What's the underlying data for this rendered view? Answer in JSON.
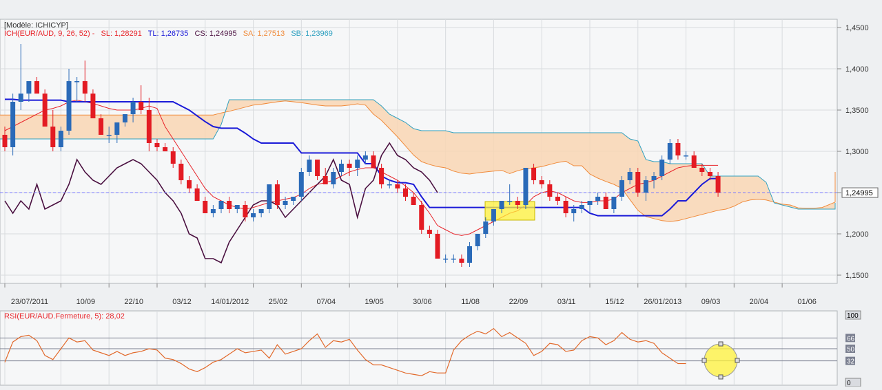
{
  "chart_data": [
    {
      "type": "candlestick",
      "title": "[Modèle: ICHICYP]",
      "indicator_prefix": "ICH(EUR/AUD, 9, 26, 52) -",
      "legend": [
        {
          "label": "SL: 1,28291",
          "color": "#e8242a"
        },
        {
          "label": "TL: 1,26735",
          "color": "#1a1ad8"
        },
        {
          "label": "CS: 1,24995",
          "color": "#4a1040"
        },
        {
          "label": "SA: 1,27513",
          "color": "#f08a3a"
        },
        {
          "label": "SB: 1,23969",
          "color": "#2fa0c0"
        }
      ],
      "ylim": [
        1.14,
        1.46
      ],
      "yticks": [
        {
          "value": 1.45,
          "label": "1,4500"
        },
        {
          "value": 1.4,
          "label": "1,4000"
        },
        {
          "value": 1.35,
          "label": "1,3500"
        },
        {
          "value": 1.3,
          "label": "1,3000"
        },
        {
          "value": 1.25,
          "label": "1,2500"
        },
        {
          "value": 1.2,
          "label": "1,2000"
        },
        {
          "value": 1.15,
          "label": "1,1500"
        }
      ],
      "last_price": {
        "value": 1.24995,
        "label": "1,24995"
      },
      "x_count": 104,
      "xticks": [
        {
          "i": 0,
          "label": "23/07/2011"
        },
        {
          "i": 7,
          "label": "10/09"
        },
        {
          "i": 13,
          "label": "22/10"
        },
        {
          "i": 19,
          "label": "03/12"
        },
        {
          "i": 25,
          "label": "14/01/2012"
        },
        {
          "i": 31,
          "label": "25/02"
        },
        {
          "i": 37,
          "label": "07/04"
        },
        {
          "i": 43,
          "label": "19/05"
        },
        {
          "i": 49,
          "label": "30/06"
        },
        {
          "i": 55,
          "label": "11/08"
        },
        {
          "i": 61,
          "label": "22/09"
        },
        {
          "i": 67,
          "label": "03/11"
        },
        {
          "i": 73,
          "label": "15/12"
        },
        {
          "i": 79,
          "label": "26/01/2013"
        },
        {
          "i": 85,
          "label": "09/03"
        },
        {
          "i": 91,
          "label": "20/04"
        },
        {
          "i": 97,
          "label": "01/06"
        }
      ],
      "colors": {
        "up": "#2a6ab8",
        "down": "#e31b23",
        "cloud": "#f9d6b4"
      },
      "candles": [
        [
          1.32,
          1.33,
          1.3,
          1.305
        ],
        [
          1.305,
          1.37,
          1.295,
          1.36
        ],
        [
          1.36,
          1.43,
          1.35,
          1.37
        ],
        [
          1.37,
          1.385,
          1.36,
          1.385
        ],
        [
          1.385,
          1.39,
          1.37,
          1.37
        ],
        [
          1.37,
          1.375,
          1.33,
          1.33
        ],
        [
          1.33,
          1.35,
          1.3,
          1.305
        ],
        [
          1.305,
          1.33,
          1.3,
          1.325
        ],
        [
          1.325,
          1.4,
          1.32,
          1.385
        ],
        [
          1.385,
          1.39,
          1.36,
          1.385
        ],
        [
          1.385,
          1.41,
          1.36,
          1.37
        ],
        [
          1.37,
          1.375,
          1.34,
          1.34
        ],
        [
          1.34,
          1.345,
          1.32,
          1.32
        ],
        [
          1.32,
          1.33,
          1.31,
          1.32
        ],
        [
          1.32,
          1.335,
          1.31,
          1.335
        ],
        [
          1.335,
          1.345,
          1.33,
          1.345
        ],
        [
          1.345,
          1.365,
          1.335,
          1.36
        ],
        [
          1.36,
          1.38,
          1.345,
          1.35
        ],
        [
          1.35,
          1.365,
          1.3,
          1.31
        ],
        [
          1.31,
          1.315,
          1.3,
          1.305
        ],
        [
          1.305,
          1.31,
          1.3,
          1.3
        ],
        [
          1.3,
          1.305,
          1.28,
          1.285
        ],
        [
          1.285,
          1.29,
          1.26,
          1.265
        ],
        [
          1.265,
          1.27,
          1.25,
          1.255
        ],
        [
          1.255,
          1.26,
          1.24,
          1.24
        ],
        [
          1.24,
          1.245,
          1.225,
          1.225
        ],
        [
          1.225,
          1.235,
          1.22,
          1.23
        ],
        [
          1.23,
          1.24,
          1.225,
          1.24
        ],
        [
          1.24,
          1.245,
          1.225,
          1.23
        ],
        [
          1.23,
          1.235,
          1.225,
          1.235
        ],
        [
          1.235,
          1.24,
          1.215,
          1.22
        ],
        [
          1.22,
          1.23,
          1.215,
          1.225
        ],
        [
          1.225,
          1.23,
          1.22,
          1.23
        ],
        [
          1.23,
          1.26,
          1.225,
          1.26
        ],
        [
          1.26,
          1.265,
          1.23,
          1.235
        ],
        [
          1.235,
          1.245,
          1.23,
          1.24
        ],
        [
          1.24,
          1.245,
          1.235,
          1.245
        ],
        [
          1.245,
          1.28,
          1.24,
          1.275
        ],
        [
          1.275,
          1.295,
          1.27,
          1.29
        ],
        [
          1.29,
          1.29,
          1.265,
          1.27
        ],
        [
          1.27,
          1.28,
          1.26,
          1.26
        ],
        [
          1.26,
          1.28,
          1.255,
          1.275
        ],
        [
          1.275,
          1.29,
          1.27,
          1.285
        ],
        [
          1.285,
          1.29,
          1.27,
          1.28
        ],
        [
          1.28,
          1.295,
          1.27,
          1.29
        ],
        [
          1.29,
          1.3,
          1.285,
          1.295
        ],
        [
          1.295,
          1.3,
          1.28,
          1.28
        ],
        [
          1.28,
          1.285,
          1.255,
          1.26
        ],
        [
          1.26,
          1.265,
          1.255,
          1.26
        ],
        [
          1.26,
          1.265,
          1.25,
          1.255
        ],
        [
          1.255,
          1.26,
          1.24,
          1.245
        ],
        [
          1.245,
          1.25,
          1.235,
          1.235
        ],
        [
          1.235,
          1.24,
          1.2,
          1.205
        ],
        [
          1.205,
          1.21,
          1.195,
          1.2
        ],
        [
          1.2,
          1.205,
          1.17,
          1.17
        ],
        [
          1.17,
          1.175,
          1.165,
          1.17
        ],
        [
          1.17,
          1.175,
          1.165,
          1.17
        ],
        [
          1.17,
          1.175,
          1.16,
          1.165
        ],
        [
          1.165,
          1.19,
          1.16,
          1.185
        ],
        [
          1.185,
          1.2,
          1.18,
          1.2
        ],
        [
          1.2,
          1.22,
          1.195,
          1.215
        ],
        [
          1.215,
          1.23,
          1.21,
          1.23
        ],
        [
          1.23,
          1.24,
          1.225,
          1.24
        ],
        [
          1.24,
          1.26,
          1.235,
          1.24
        ],
        [
          1.24,
          1.245,
          1.23,
          1.235
        ],
        [
          1.235,
          1.28,
          1.23,
          1.28
        ],
        [
          1.28,
          1.285,
          1.26,
          1.265
        ],
        [
          1.265,
          1.27,
          1.255,
          1.26
        ],
        [
          1.26,
          1.265,
          1.24,
          1.245
        ],
        [
          1.245,
          1.25,
          1.235,
          1.24
        ],
        [
          1.24,
          1.245,
          1.22,
          1.225
        ],
        [
          1.225,
          1.235,
          1.215,
          1.23
        ],
        [
          1.23,
          1.24,
          1.225,
          1.235
        ],
        [
          1.235,
          1.24,
          1.225,
          1.24
        ],
        [
          1.24,
          1.25,
          1.235,
          1.245
        ],
        [
          1.245,
          1.25,
          1.23,
          1.23
        ],
        [
          1.23,
          1.245,
          1.225,
          1.245
        ],
        [
          1.245,
          1.27,
          1.24,
          1.265
        ],
        [
          1.265,
          1.28,
          1.26,
          1.275
        ],
        [
          1.275,
          1.28,
          1.245,
          1.25
        ],
        [
          1.25,
          1.27,
          1.24,
          1.265
        ],
        [
          1.265,
          1.275,
          1.255,
          1.27
        ],
        [
          1.27,
          1.295,
          1.265,
          1.29
        ],
        [
          1.29,
          1.315,
          1.285,
          1.31
        ],
        [
          1.31,
          1.315,
          1.29,
          1.295
        ],
        [
          1.295,
          1.3,
          1.29,
          1.295
        ],
        [
          1.295,
          1.3,
          1.28,
          1.28
        ],
        [
          1.28,
          1.285,
          1.27,
          1.275
        ],
        [
          1.275,
          1.28,
          1.265,
          1.27
        ],
        [
          1.27,
          1.275,
          1.245,
          1.25
        ]
      ],
      "tenkan": [
        1.325,
        1.33,
        1.335,
        1.34,
        1.345,
        1.35,
        1.352,
        1.355,
        1.36,
        1.362,
        1.36,
        1.358,
        1.355,
        1.352,
        1.35,
        1.35,
        1.35,
        1.352,
        1.355,
        1.352,
        1.33,
        1.315,
        1.3,
        1.285,
        1.27,
        1.255,
        1.245,
        1.24,
        1.235,
        1.232,
        1.23,
        1.232,
        1.235,
        1.238,
        1.24,
        1.242,
        1.244,
        1.248,
        1.255,
        1.26,
        1.262,
        1.265,
        1.27,
        1.275,
        1.278,
        1.28,
        1.28,
        1.275,
        1.27,
        1.265,
        1.258,
        1.25,
        1.238,
        1.225,
        1.21,
        1.205,
        1.2,
        1.198,
        1.2,
        1.205,
        1.21,
        1.215,
        1.22,
        1.225,
        1.228,
        1.235,
        1.245,
        1.25,
        1.252,
        1.25,
        1.245,
        1.24,
        1.238,
        1.238,
        1.24,
        1.24,
        1.242,
        1.25,
        1.255,
        1.26,
        1.262,
        1.265,
        1.27,
        1.275,
        1.28,
        1.282,
        1.283,
        1.283,
        1.283,
        1.283
      ],
      "kijun": [
        1.363,
        1.363,
        1.362,
        1.362,
        1.362,
        1.362,
        1.362,
        1.362,
        1.36,
        1.36,
        1.36,
        1.36,
        1.36,
        1.36,
        1.36,
        1.36,
        1.36,
        1.36,
        1.36,
        1.36,
        1.36,
        1.36,
        1.355,
        1.35,
        1.343,
        1.336,
        1.33,
        1.328,
        1.328,
        1.328,
        1.322,
        1.315,
        1.31,
        1.31,
        1.31,
        1.31,
        1.31,
        1.298,
        1.298,
        1.298,
        1.298,
        1.298,
        1.298,
        1.298,
        1.298,
        1.285,
        1.285,
        1.27,
        1.265,
        1.262,
        1.262,
        1.26,
        1.245,
        1.232,
        1.232,
        1.232,
        1.232,
        1.232,
        1.232,
        1.232,
        1.232,
        1.232,
        1.232,
        1.232,
        1.232,
        1.232,
        1.232,
        1.232,
        1.232,
        1.232,
        1.232,
        1.232,
        1.232,
        1.225,
        1.222,
        1.222,
        1.222,
        1.222,
        1.222,
        1.222,
        1.222,
        1.222,
        1.222,
        1.23,
        1.24,
        1.24,
        1.25,
        1.26,
        1.267,
        1.267
      ],
      "chikou": [
        1.24,
        1.225,
        1.24,
        1.23,
        1.26,
        1.23,
        1.235,
        1.24,
        1.26,
        1.29,
        1.275,
        1.265,
        1.26,
        1.27,
        1.28,
        1.285,
        1.29,
        1.285,
        1.275,
        1.265,
        1.25,
        1.24,
        1.225,
        1.2,
        1.195,
        1.17,
        1.17,
        1.165,
        1.19,
        1.205,
        1.22,
        1.235,
        1.24,
        1.24,
        1.235,
        1.22,
        1.23,
        1.24,
        1.25,
        1.26,
        1.27,
        1.29,
        1.265,
        1.26,
        1.22,
        1.255,
        1.265,
        1.295,
        1.31,
        1.295,
        1.29,
        1.28,
        1.275,
        1.265,
        1.25
      ]
    },
    {
      "type": "line",
      "title": "RSI(EUR/AUD.Fermeture, 5): 28,02",
      "ylim": [
        0,
        100
      ],
      "levels": [
        {
          "value": 66,
          "label": "66"
        },
        {
          "value": 50,
          "label": "50"
        },
        {
          "value": 32,
          "label": "32"
        }
      ],
      "scale_labels": [
        {
          "value": 100,
          "label": "100"
        },
        {
          "value": 0,
          "label": "0"
        }
      ],
      "line_color": "#e26a2c",
      "values": [
        30,
        60,
        68,
        70,
        62,
        40,
        34,
        50,
        66,
        60,
        62,
        48,
        44,
        40,
        46,
        40,
        44,
        46,
        50,
        48,
        36,
        34,
        28,
        20,
        16,
        22,
        30,
        34,
        42,
        50,
        44,
        46,
        48,
        36,
        56,
        42,
        46,
        50,
        62,
        72,
        52,
        62,
        60,
        64,
        48,
        34,
        26,
        26,
        22,
        18,
        14,
        12,
        10,
        16,
        14,
        14,
        48,
        62,
        70,
        76,
        72,
        80,
        68,
        74,
        66,
        58,
        40,
        46,
        58,
        56,
        46,
        48,
        62,
        68,
        66,
        56,
        62,
        74,
        64,
        60,
        62,
        58,
        44,
        36,
        28,
        28
      ]
    }
  ]
}
